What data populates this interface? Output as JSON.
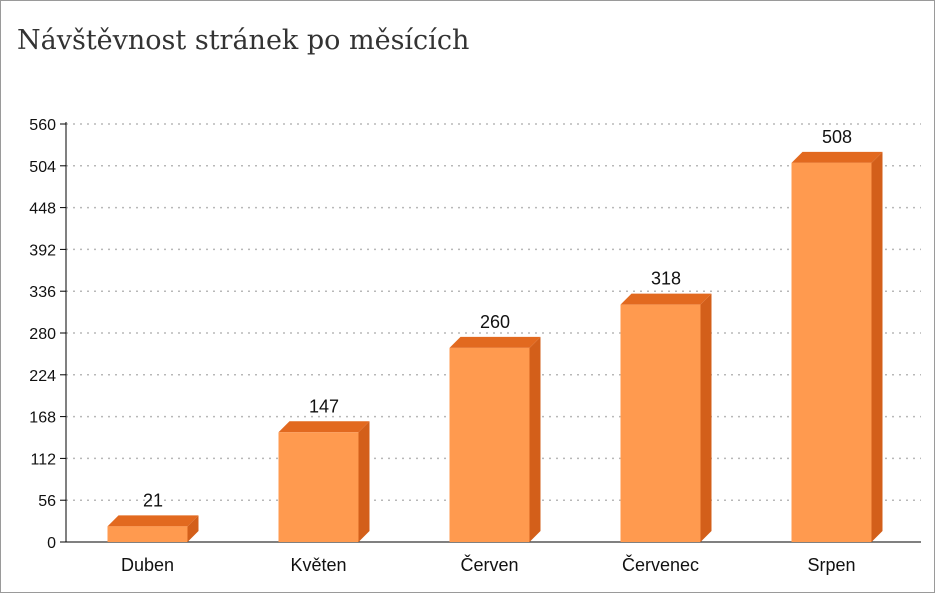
{
  "chart_data": {
    "type": "bar",
    "title": "Návštěvnost stránek po měsících",
    "categories": [
      "Duben",
      "Květen",
      "Červen",
      "Červenec",
      "Srpen"
    ],
    "values": [
      21,
      147,
      260,
      318,
      508
    ],
    "ylim": [
      0,
      560
    ],
    "yticks": [
      0,
      56,
      112,
      168,
      224,
      280,
      336,
      392,
      448,
      504,
      560
    ],
    "grid": true,
    "legend": "none"
  },
  "colors": {
    "bar_front": "#ff9a4f",
    "bar_side": "#d35f1a",
    "bar_top": "#e2691f",
    "grid": "#b8b8b8",
    "axis": "#000000"
  }
}
